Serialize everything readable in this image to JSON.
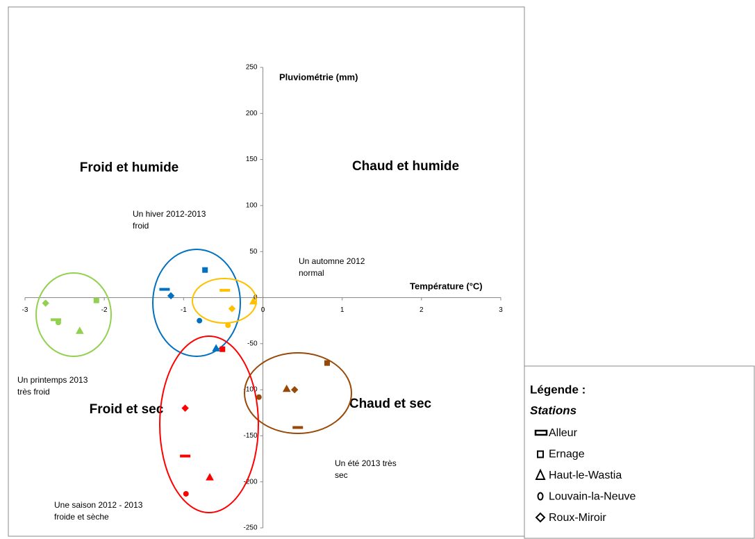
{
  "chart_data": {
    "type": "scatter",
    "xlabel": "Température (°C)",
    "ylabel": "Pluviométrie (mm)",
    "xlim": [
      -3,
      3
    ],
    "xticks": [
      -3,
      -2,
      -1,
      0,
      1,
      2,
      3
    ],
    "ylim": [
      -250,
      250
    ],
    "yticks": [
      -250,
      -200,
      -150,
      -100,
      -50,
      0,
      50,
      100,
      150,
      200,
      250
    ],
    "grid": false,
    "groups": [
      {
        "label": [
          "Un printemps 2013",
          "très froid"
        ],
        "color": "#92d050"
      },
      {
        "label": [
          "Un hiver 2012-2013",
          "froid"
        ],
        "color": "#0070c0"
      },
      {
        "label": [
          "Un automne 2012",
          "normal"
        ],
        "color": "#ffc000"
      },
      {
        "label": [
          "Un été 2013 très",
          "sec"
        ],
        "color": "#984807"
      },
      {
        "label": [
          "Une saison 2012 - 2013",
          "froide et sèche"
        ],
        "color": "#ff0000"
      }
    ],
    "series": [
      {
        "name": "Alleur",
        "marker": "dash",
        "x": [
          -2.61,
          -1.24,
          -0.48,
          0.44,
          -0.98
        ],
        "y": [
          -24,
          9,
          8,
          -141,
          -172
        ]
      },
      {
        "name": "Ernage",
        "marker": "square",
        "x": [
          -2.1,
          -0.73,
          null,
          0.81,
          -0.51
        ],
        "y": [
          -3,
          30,
          null,
          -71,
          -56
        ]
      },
      {
        "name": "Haut-le-Wastia",
        "marker": "triangle",
        "x": [
          -2.31,
          -0.59,
          -0.12,
          0.3,
          -0.67
        ],
        "y": [
          -36,
          -55,
          -4,
          -99,
          -195
        ]
      },
      {
        "name": "Louvain-la-Neuve",
        "marker": "circle",
        "x": [
          -2.58,
          -0.8,
          -0.44,
          -0.05,
          -0.97
        ],
        "y": [
          -27,
          -25,
          -30,
          -108,
          -213
        ]
      },
      {
        "name": "Roux-Miroir",
        "marker": "diamond",
        "x": [
          -2.74,
          -1.16,
          -0.39,
          0.4,
          -0.98
        ],
        "y": [
          -6,
          2,
          -12,
          -100,
          -120
        ]
      }
    ],
    "quadrants": [
      {
        "text": "Froid et humide",
        "color": "#1f4e79"
      },
      {
        "text": "Chaud et humide",
        "color": "#953735"
      },
      {
        "text": "Froid et sec",
        "color": "#95b3d7"
      },
      {
        "text": "Chaud et sec",
        "color": "#e6b9b8"
      }
    ],
    "legend_title": "Légende :",
    "legend_subtitle": "Stations"
  }
}
